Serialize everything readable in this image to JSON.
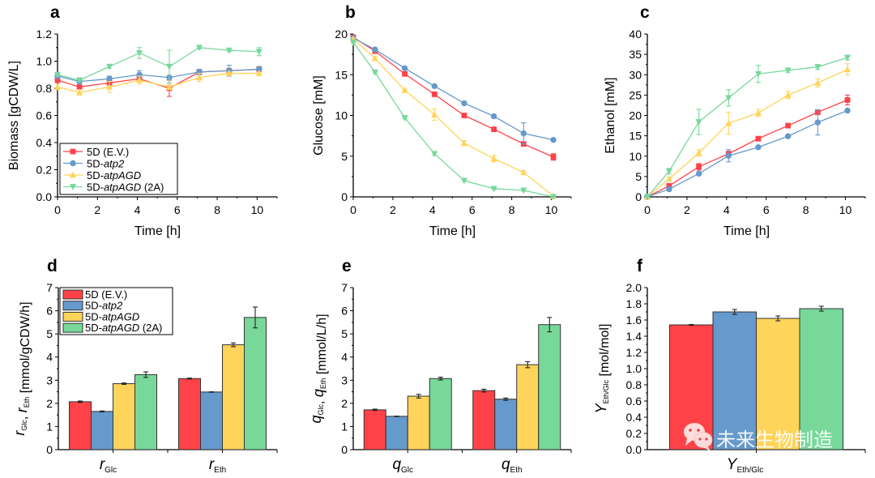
{
  "series_names": [
    "5D (E.V.)",
    "5D-atp2",
    "5D-atpAGD",
    "5D-atpAGD (2A)"
  ],
  "legend_labels": [
    {
      "prefix": "5D ",
      "italic": "",
      "suffix": "(E.V.)"
    },
    {
      "prefix": "5D-",
      "italic": "atp2",
      "suffix": ""
    },
    {
      "prefix": "5D-",
      "italic": "atpAGD",
      "suffix": ""
    },
    {
      "prefix": "5D-",
      "italic": "atpAGD",
      "suffix": " (2A)"
    }
  ],
  "colors": {
    "red": "#FF4248",
    "blue": "#6699CC",
    "yellow": "#FFD45A",
    "green": "#77D89A",
    "axis": "#000000",
    "bar_edge": "#333333"
  },
  "watermark": {
    "text": "未来生物制造",
    "icon": "wechat-icon"
  },
  "chart_data": [
    {
      "id": "a",
      "panel_letter": "a",
      "type": "line",
      "xlabel": "Time [h]",
      "ylabel": "Biomass [gCDW/L]",
      "xlim": [
        0,
        11
      ],
      "ylim": [
        0,
        1.2
      ],
      "xticks": [
        0,
        2,
        4,
        6,
        8,
        10
      ],
      "yticks": [
        0.0,
        0.2,
        0.4,
        0.6,
        0.8,
        1.0,
        1.2
      ],
      "ytick_decimals": 1,
      "legend": "bottom-left",
      "x": [
        0,
        1.1,
        2.6,
        4.1,
        5.6,
        7.1,
        8.6,
        10.1
      ],
      "series": [
        {
          "name": "5D (E.V.)",
          "marker": "square",
          "values": [
            0.86,
            0.81,
            0.84,
            0.87,
            0.8,
            0.92,
            0.93,
            0.94
          ],
          "err": [
            0.01,
            0.01,
            0.01,
            0.02,
            0.06,
            0.01,
            0.01,
            0.02
          ]
        },
        {
          "name": "5D-atp2",
          "marker": "circle",
          "values": [
            0.89,
            0.85,
            0.87,
            0.9,
            0.88,
            0.92,
            0.93,
            0.94
          ],
          "err": [
            0.01,
            0.01,
            0.02,
            0.03,
            0.01,
            0.02,
            0.04,
            0.02
          ]
        },
        {
          "name": "5D-atpAGD",
          "marker": "triangle-up",
          "values": [
            0.81,
            0.77,
            0.81,
            0.86,
            0.81,
            0.88,
            0.91,
            0.91
          ],
          "err": [
            0.02,
            0.02,
            0.04,
            0.03,
            0.02,
            0.03,
            0.01,
            0.01
          ]
        },
        {
          "name": "5D-atpAGD (2A)",
          "marker": "triangle-down",
          "values": [
            0.9,
            0.86,
            0.96,
            1.06,
            0.96,
            1.1,
            1.08,
            1.07
          ],
          "err": [
            0.01,
            0.01,
            0.01,
            0.04,
            0.12,
            0.01,
            0.01,
            0.03
          ]
        }
      ]
    },
    {
      "id": "b",
      "panel_letter": "b",
      "type": "line",
      "xlabel": "Time [h]",
      "ylabel": "Glucose [mM]",
      "xlim": [
        0,
        11
      ],
      "ylim": [
        0,
        20
      ],
      "xticks": [
        0,
        2,
        4,
        6,
        8,
        10
      ],
      "yticks": [
        0,
        5,
        10,
        15,
        20
      ],
      "ytick_decimals": 0,
      "x": [
        0,
        1.1,
        2.6,
        4.1,
        5.6,
        7.1,
        8.6,
        10.1
      ],
      "series": [
        {
          "name": "5D (E.V.)",
          "marker": "square",
          "values": [
            19.6,
            17.9,
            15.1,
            12.6,
            10.0,
            8.3,
            6.5,
            4.9
          ],
          "err": [
            0.1,
            0.1,
            0.1,
            0.1,
            0.1,
            0.1,
            0.1,
            0.4
          ]
        },
        {
          "name": "5D-atp2",
          "marker": "circle",
          "values": [
            19.5,
            18.1,
            15.8,
            13.6,
            11.5,
            9.9,
            7.8,
            7.0
          ],
          "err": [
            0.1,
            0.1,
            0.1,
            0.1,
            0.1,
            0.1,
            1.3,
            0.1
          ]
        },
        {
          "name": "5D-atpAGD",
          "marker": "triangle-up",
          "values": [
            19.4,
            17.0,
            13.1,
            10.1,
            6.6,
            4.7,
            3.0,
            0.1
          ],
          "err": [
            0.1,
            0.2,
            0.1,
            0.7,
            0.3,
            0.4,
            0.2,
            0.1
          ]
        },
        {
          "name": "5D-atpAGD (2A)",
          "marker": "triangle-down",
          "values": [
            19.0,
            15.3,
            9.7,
            5.3,
            2.0,
            1.0,
            0.8,
            0.0
          ],
          "err": [
            0.1,
            0.1,
            0.1,
            0.2,
            0.1,
            0.1,
            0.1,
            0.05
          ]
        }
      ]
    },
    {
      "id": "c",
      "panel_letter": "c",
      "type": "line",
      "xlabel": "Time [h]",
      "ylabel": "Ethanol [mM]",
      "xlim": [
        0,
        11
      ],
      "ylim": [
        0,
        40
      ],
      "xticks": [
        0,
        2,
        4,
        6,
        8,
        10
      ],
      "yticks": [
        0,
        5,
        10,
        15,
        20,
        25,
        30,
        35,
        40
      ],
      "ytick_decimals": 0,
      "x": [
        0,
        1.1,
        2.6,
        4.1,
        5.6,
        7.1,
        8.6,
        10.1
      ],
      "series": [
        {
          "name": "5D (E.V.)",
          "marker": "square",
          "values": [
            0,
            2.7,
            7.4,
            10.6,
            14.3,
            17.5,
            20.8,
            23.8
          ],
          "err": [
            0,
            0.3,
            0.8,
            0.6,
            0.3,
            0.3,
            0.6,
            1.2
          ]
        },
        {
          "name": "5D-atp2",
          "marker": "circle",
          "values": [
            0,
            1.9,
            5.7,
            10.1,
            12.2,
            14.9,
            18.3,
            21.2
          ],
          "err": [
            0,
            0.3,
            0.3,
            1.5,
            0.3,
            0.3,
            3.1,
            0.4
          ]
        },
        {
          "name": "5D-atpAGD",
          "marker": "triangle-up",
          "values": [
            0,
            4.4,
            10.8,
            18.1,
            20.6,
            25.0,
            28.0,
            31.3
          ],
          "err": [
            0,
            0.4,
            0.8,
            2.7,
            0.9,
            0.9,
            1.0,
            1.4
          ]
        },
        {
          "name": "5D-atpAGD (2A)",
          "marker": "triangle-down",
          "values": [
            0,
            6.3,
            18.4,
            24.3,
            30.2,
            31.1,
            31.9,
            34.2
          ],
          "err": [
            0,
            0.7,
            3.1,
            2.0,
            2.1,
            0.5,
            0.6,
            0.6
          ]
        }
      ]
    },
    {
      "id": "d",
      "panel_letter": "d",
      "type": "bar",
      "ylabel_parts": [
        {
          "t": "r",
          "i": true
        },
        {
          "t": "Glc",
          "sub": true
        },
        {
          "t": ", "
        },
        {
          "t": "r",
          "i": true
        },
        {
          "t": "Eth",
          "sub": true
        },
        {
          "t": " [mmol/gCDW/h]"
        }
      ],
      "categories": [
        {
          "main": "r",
          "sub": "Glc"
        },
        {
          "main": "r",
          "sub": "Eth"
        }
      ],
      "ylim": [
        0,
        7
      ],
      "yticks": [
        0,
        1,
        2,
        3,
        4,
        5,
        6,
        7
      ],
      "ytick_decimals": 0,
      "legend": "top-left",
      "series": [
        {
          "name": "5D (E.V.)",
          "values": [
            2.07,
            3.07
          ],
          "err": [
            0.03,
            0.02
          ]
        },
        {
          "name": "5D-atp2",
          "values": [
            1.65,
            2.49
          ],
          "err": [
            0.02,
            0.01
          ]
        },
        {
          "name": "5D-atpAGD",
          "values": [
            2.85,
            4.53
          ],
          "err": [
            0.03,
            0.08
          ]
        },
        {
          "name": "5D-atpAGD (2A)",
          "values": [
            3.24,
            5.71
          ],
          "err": [
            0.12,
            0.45
          ]
        }
      ]
    },
    {
      "id": "e",
      "panel_letter": "e",
      "type": "bar",
      "ylabel_parts": [
        {
          "t": "q",
          "i": true
        },
        {
          "t": "Glc",
          "sub": true
        },
        {
          "t": ", "
        },
        {
          "t": "q",
          "i": true
        },
        {
          "t": "Eth",
          "sub": true
        },
        {
          "t": " [mmol/L/h]"
        }
      ],
      "categories": [
        {
          "main": "q",
          "sub": "Glc"
        },
        {
          "main": "q",
          "sub": "Eth"
        }
      ],
      "ylim": [
        0,
        7
      ],
      "yticks": [
        0,
        1,
        2,
        3,
        4,
        5,
        6,
        7
      ],
      "ytick_decimals": 0,
      "series": [
        {
          "name": "5D (E.V.)",
          "values": [
            1.72,
            2.55
          ],
          "err": [
            0.03,
            0.06
          ]
        },
        {
          "name": "5D-atp2",
          "values": [
            1.44,
            2.18
          ],
          "err": [
            0.01,
            0.05
          ]
        },
        {
          "name": "5D-atpAGD",
          "values": [
            2.31,
            3.67
          ],
          "err": [
            0.08,
            0.13
          ]
        },
        {
          "name": "5D-atpAGD (2A)",
          "values": [
            3.07,
            5.4
          ],
          "err": [
            0.06,
            0.31
          ]
        }
      ]
    },
    {
      "id": "f",
      "panel_letter": "f",
      "type": "bar",
      "ylabel_parts": [
        {
          "t": "Y",
          "i": true
        },
        {
          "t": "Eth/Glc",
          "sub": true
        },
        {
          "t": " [mol/mol]"
        }
      ],
      "categories": [
        {
          "main": "Y",
          "sub": "Eth/Glc"
        }
      ],
      "ylim": [
        0,
        2.0
      ],
      "yticks": [
        0.0,
        0.2,
        0.4,
        0.6,
        0.8,
        1.0,
        1.2,
        1.4,
        1.6,
        1.8,
        2.0
      ],
      "ytick_decimals": 1,
      "series": [
        {
          "name": "5D (E.V.)",
          "values": [
            1.54
          ],
          "err": [
            0.005
          ]
        },
        {
          "name": "5D-atp2",
          "values": [
            1.7
          ],
          "err": [
            0.03
          ]
        },
        {
          "name": "5D-atpAGD",
          "values": [
            1.62
          ],
          "err": [
            0.03
          ]
        },
        {
          "name": "5D-atpAGD (2A)",
          "values": [
            1.74
          ],
          "err": [
            0.03
          ]
        }
      ]
    }
  ]
}
